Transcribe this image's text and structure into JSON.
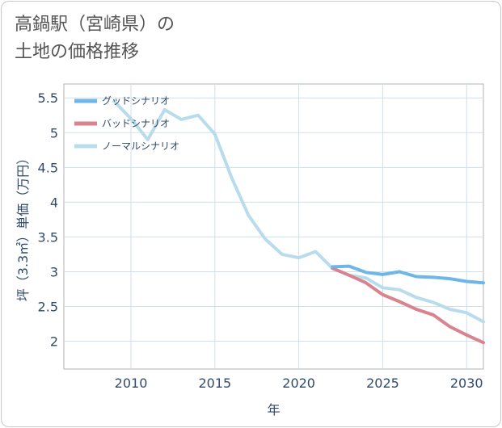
{
  "title_lines": [
    "高鍋駅（宮崎県）の",
    "土地の価格推移"
  ],
  "chart_data": {
    "type": "line",
    "title": "高鍋駅（宮崎県）の土地の価格推移",
    "xlabel": "年",
    "ylabel": "坪（3.3㎡）単価（万円）",
    "xlim": [
      2006,
      2031
    ],
    "ylim": [
      1.6,
      5.7
    ],
    "xticks": [
      2010,
      2015,
      2020,
      2025,
      2030
    ],
    "yticks": [
      2,
      2.5,
      3,
      3.5,
      4,
      4.5,
      5,
      5.5
    ],
    "grid": true,
    "legend_position": "top-left",
    "series": [
      {
        "name": "グッドシナリオ",
        "color": "#6fb6e8",
        "x": [
          2022,
          2023,
          2024,
          2025,
          2026,
          2027,
          2028,
          2029,
          2030,
          2031
        ],
        "y": [
          3.07,
          3.08,
          2.99,
          2.96,
          3.0,
          2.93,
          2.92,
          2.9,
          2.86,
          2.84
        ]
      },
      {
        "name": "バッドシナリオ",
        "color": "#d9838e",
        "x": [
          2022,
          2023,
          2024,
          2025,
          2026,
          2027,
          2028,
          2029,
          2030,
          2031
        ],
        "y": [
          3.05,
          2.95,
          2.84,
          2.67,
          2.57,
          2.46,
          2.38,
          2.21,
          2.09,
          1.98
        ]
      },
      {
        "name": "ノーマルシナリオ",
        "color": "#b9dcec",
        "x": [
          2009,
          2010,
          2011,
          2012,
          2013,
          2014,
          2015,
          2016,
          2017,
          2018,
          2019,
          2020,
          2021,
          2022,
          2023,
          2024,
          2025,
          2026,
          2027,
          2028,
          2029,
          2030,
          2031
        ],
        "y": [
          5.45,
          5.2,
          4.9,
          5.33,
          5.19,
          5.25,
          4.98,
          4.35,
          3.81,
          3.47,
          3.25,
          3.2,
          3.29,
          3.05,
          2.95,
          2.91,
          2.77,
          2.74,
          2.63,
          2.56,
          2.46,
          2.41,
          2.28
        ]
      }
    ]
  }
}
